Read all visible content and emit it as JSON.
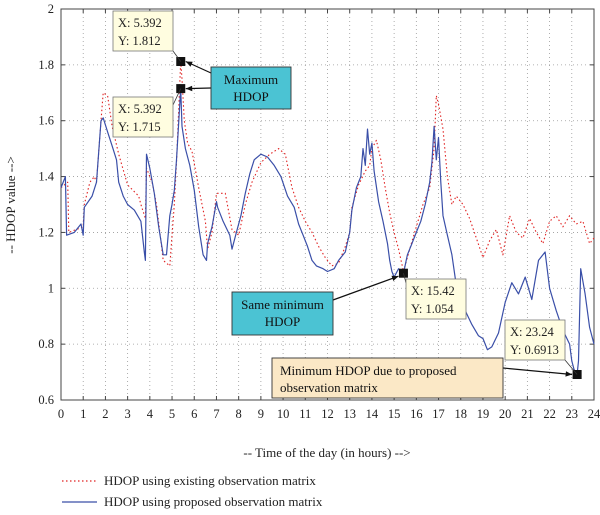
{
  "colors": {
    "existing": "#e02020",
    "proposed": "#3a4fa8",
    "callout_blue": "#4bc3d3",
    "callout_peach": "#fbe8c6",
    "datatip_bg": "#fffde0"
  },
  "chart_data": {
    "type": "line",
    "xlabel": "-- Time of the day (in hours) -->",
    "ylabel": "-- HDOP value -->",
    "xlim": [
      0,
      24
    ],
    "ylim": [
      0.6,
      2
    ],
    "x_ticks": [
      "0",
      "1",
      "2",
      "3",
      "4",
      "5",
      "6",
      "7",
      "8",
      "9",
      "10",
      "11",
      "12",
      "13",
      "14",
      "15",
      "16",
      "17",
      "18",
      "19",
      "20",
      "21",
      "22",
      "23",
      "24"
    ],
    "y_ticks": [
      "0.6",
      "0.8",
      "1",
      "1.2",
      "1.4",
      "1.6",
      "1.8",
      "2"
    ],
    "grid": true,
    "legend_position": "bottom",
    "series": [
      {
        "name": "HDOP using existing observation matrix",
        "style": "dotted",
        "x": [
          0,
          0.3,
          0.35,
          1.0,
          1.05,
          1.3,
          1.5,
          1.6,
          1.8,
          1.9,
          2.1,
          2.3,
          2.6,
          3.0,
          3.5,
          3.6,
          3.8,
          3.85,
          4.1,
          4.3,
          4.6,
          4.9,
          5.1,
          5.2,
          5.392,
          5.45,
          5.55,
          5.7,
          5.9,
          6.2,
          6.5,
          6.6,
          6.8,
          7.0,
          7.4,
          7.7,
          8.0,
          8.3,
          8.6,
          9.0,
          9.4,
          9.8,
          10.1,
          10.4,
          10.7,
          11.0,
          11.3,
          11.6,
          11.9,
          12.2,
          12.5,
          12.8,
          13.0,
          13.1,
          13.4,
          13.7,
          13.9,
          14.0,
          14.2,
          14.4,
          14.6,
          14.8,
          15.0,
          15.2,
          15.42,
          15.7,
          16.0,
          16.3,
          16.6,
          16.8,
          16.9,
          17.0,
          17.2,
          17.4,
          17.6,
          17.8,
          18.1,
          18.4,
          18.7,
          19.0,
          19.3,
          19.6,
          19.9,
          20.2,
          20.5,
          20.8,
          21.1,
          21.4,
          21.7,
          22.0,
          22.3,
          22.6,
          22.9,
          23.2,
          23.5,
          23.8,
          24.0
        ],
        "y": [
          1.36,
          1.38,
          1.2,
          1.22,
          1.3,
          1.38,
          1.4,
          1.38,
          1.6,
          1.7,
          1.69,
          1.58,
          1.48,
          1.37,
          1.33,
          1.3,
          1.25,
          1.43,
          1.38,
          1.3,
          1.1,
          1.08,
          1.3,
          1.45,
          1.812,
          1.75,
          1.6,
          1.52,
          1.49,
          1.36,
          1.24,
          1.14,
          1.2,
          1.34,
          1.34,
          1.21,
          1.19,
          1.3,
          1.38,
          1.45,
          1.48,
          1.5,
          1.48,
          1.36,
          1.29,
          1.24,
          1.2,
          1.15,
          1.11,
          1.08,
          1.09,
          1.15,
          1.2,
          1.29,
          1.37,
          1.42,
          1.44,
          1.5,
          1.53,
          1.46,
          1.36,
          1.27,
          1.2,
          1.14,
          1.06,
          1.14,
          1.22,
          1.3,
          1.36,
          1.5,
          1.69,
          1.66,
          1.57,
          1.4,
          1.3,
          1.33,
          1.3,
          1.25,
          1.18,
          1.11,
          1.17,
          1.21,
          1.12,
          1.26,
          1.2,
          1.18,
          1.25,
          1.2,
          1.16,
          1.24,
          1.26,
          1.22,
          1.26,
          1.23,
          1.24,
          1.16,
          1.18
        ]
      },
      {
        "name": "HDOP using proposed observation matrix",
        "style": "solid",
        "x": [
          0,
          0.2,
          0.25,
          0.6,
          0.9,
          1.0,
          1.05,
          1.4,
          1.6,
          1.8,
          1.9,
          2.1,
          2.3,
          2.5,
          2.6,
          2.8,
          3.0,
          3.3,
          3.6,
          3.75,
          3.8,
          3.85,
          4.0,
          4.2,
          4.4,
          4.6,
          4.75,
          4.9,
          5.0,
          5.1,
          5.2,
          5.392,
          5.45,
          5.6,
          5.8,
          6.0,
          6.2,
          6.4,
          6.55,
          6.6,
          6.8,
          7.0,
          7.05,
          7.3,
          7.6,
          7.7,
          7.9,
          8.1,
          8.3,
          8.5,
          8.7,
          9.0,
          9.3,
          9.6,
          9.9,
          10.2,
          10.5,
          10.7,
          10.9,
          11.1,
          11.3,
          11.5,
          11.8,
          12.0,
          12.3,
          12.5,
          12.8,
          13.0,
          13.1,
          13.3,
          13.5,
          13.6,
          13.7,
          13.8,
          13.9,
          14.0,
          14.1,
          14.3,
          14.5,
          14.7,
          14.8,
          14.9,
          15.0,
          15.2,
          15.42,
          15.6,
          15.8,
          16.0,
          16.2,
          16.4,
          16.6,
          16.7,
          16.8,
          16.9,
          17.0,
          17.1,
          17.2,
          17.4,
          17.6,
          17.8,
          18.0,
          18.2,
          18.5,
          18.8,
          19.0,
          19.2,
          19.4,
          19.7,
          20.0,
          20.3,
          20.6,
          20.9,
          21.2,
          21.5,
          21.8,
          22.0,
          22.3,
          22.6,
          22.9,
          23.0,
          23.1,
          23.24,
          23.3,
          23.4,
          23.6,
          23.8,
          24.0
        ],
        "y": [
          1.36,
          1.4,
          1.19,
          1.2,
          1.23,
          1.19,
          1.29,
          1.33,
          1.38,
          1.6,
          1.61,
          1.56,
          1.51,
          1.46,
          1.38,
          1.33,
          1.3,
          1.28,
          1.24,
          1.13,
          1.1,
          1.48,
          1.43,
          1.34,
          1.22,
          1.12,
          1.12,
          1.26,
          1.3,
          1.35,
          1.46,
          1.715,
          1.58,
          1.5,
          1.44,
          1.35,
          1.22,
          1.12,
          1.1,
          1.16,
          1.22,
          1.31,
          1.29,
          1.24,
          1.19,
          1.14,
          1.2,
          1.26,
          1.34,
          1.41,
          1.46,
          1.48,
          1.47,
          1.44,
          1.4,
          1.33,
          1.29,
          1.23,
          1.19,
          1.15,
          1.1,
          1.08,
          1.07,
          1.06,
          1.07,
          1.1,
          1.13,
          1.2,
          1.28,
          1.36,
          1.4,
          1.5,
          1.44,
          1.57,
          1.48,
          1.52,
          1.42,
          1.31,
          1.24,
          1.16,
          1.1,
          1.06,
          1.04,
          1.07,
          1.054,
          1.12,
          1.16,
          1.2,
          1.24,
          1.3,
          1.38,
          1.45,
          1.58,
          1.46,
          1.54,
          1.38,
          1.26,
          1.19,
          1.12,
          1.01,
          0.97,
          0.92,
          0.87,
          0.83,
          0.82,
          0.78,
          0.79,
          0.84,
          0.95,
          1.02,
          0.98,
          1.04,
          0.96,
          1.1,
          1.13,
          1.0,
          0.92,
          0.85,
          0.8,
          0.74,
          0.71,
          0.6913,
          0.74,
          1.07,
          0.98,
          0.86,
          0.8
        ]
      }
    ],
    "datatips": [
      {
        "x_label": "X: 5.392",
        "y_label": "Y: 1.812",
        "x": 5.392,
        "y": 1.812
      },
      {
        "x_label": "X: 5.392",
        "y_label": "Y: 1.715",
        "x": 5.392,
        "y": 1.715
      },
      {
        "x_label": "X: 15.42",
        "y_label": "Y: 1.054",
        "x": 15.42,
        "y": 1.054
      },
      {
        "x_label": "X: 23.24",
        "y_label": "Y: 0.6913",
        "x": 23.24,
        "y": 0.6913
      }
    ],
    "callouts": [
      {
        "lines": [
          "Maximum",
          "HDOP"
        ]
      },
      {
        "lines": [
          "Same minimum",
          "HDOP"
        ]
      },
      {
        "lines": [
          "Minimum HDOP due to proposed",
          "observation matrix"
        ]
      }
    ]
  }
}
